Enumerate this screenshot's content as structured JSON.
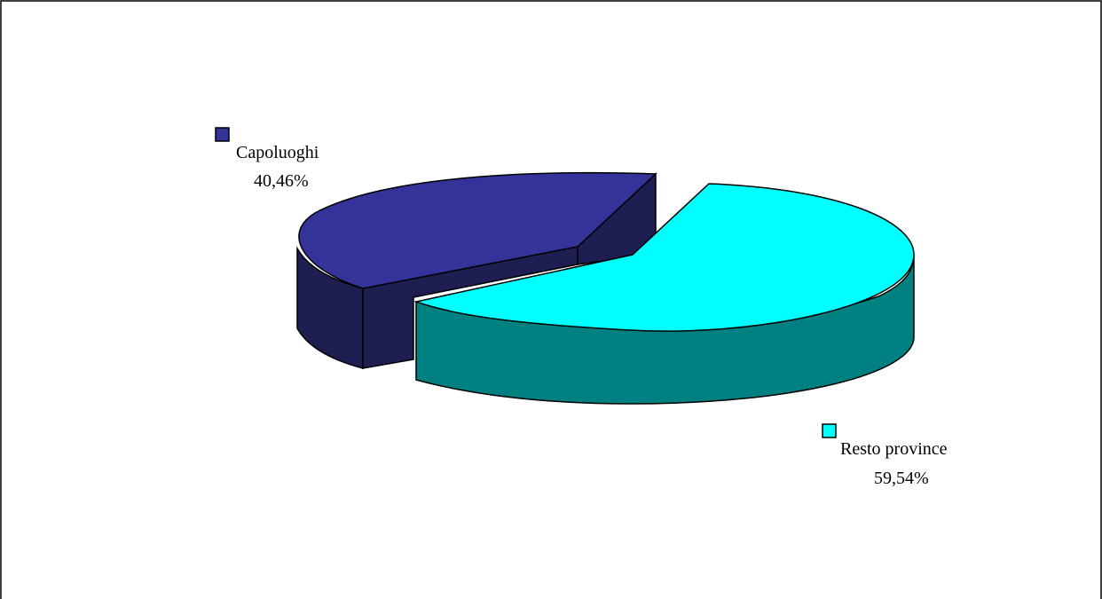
{
  "chart_data": {
    "type": "pie",
    "style": "3d-exploded",
    "slices": [
      {
        "category": "Capoluoghi",
        "value": 40.46,
        "label": "40,46%",
        "color_top": "#333399",
        "color_side": "#1e1e52",
        "legend_color": "#333399"
      },
      {
        "category": "Resto province",
        "value": 59.54,
        "label": "59,54%",
        "color_top": "#00ffff",
        "color_side": "#008080",
        "legend_color": "#00ffff"
      }
    ],
    "title": "",
    "legend": "inline-labels"
  }
}
